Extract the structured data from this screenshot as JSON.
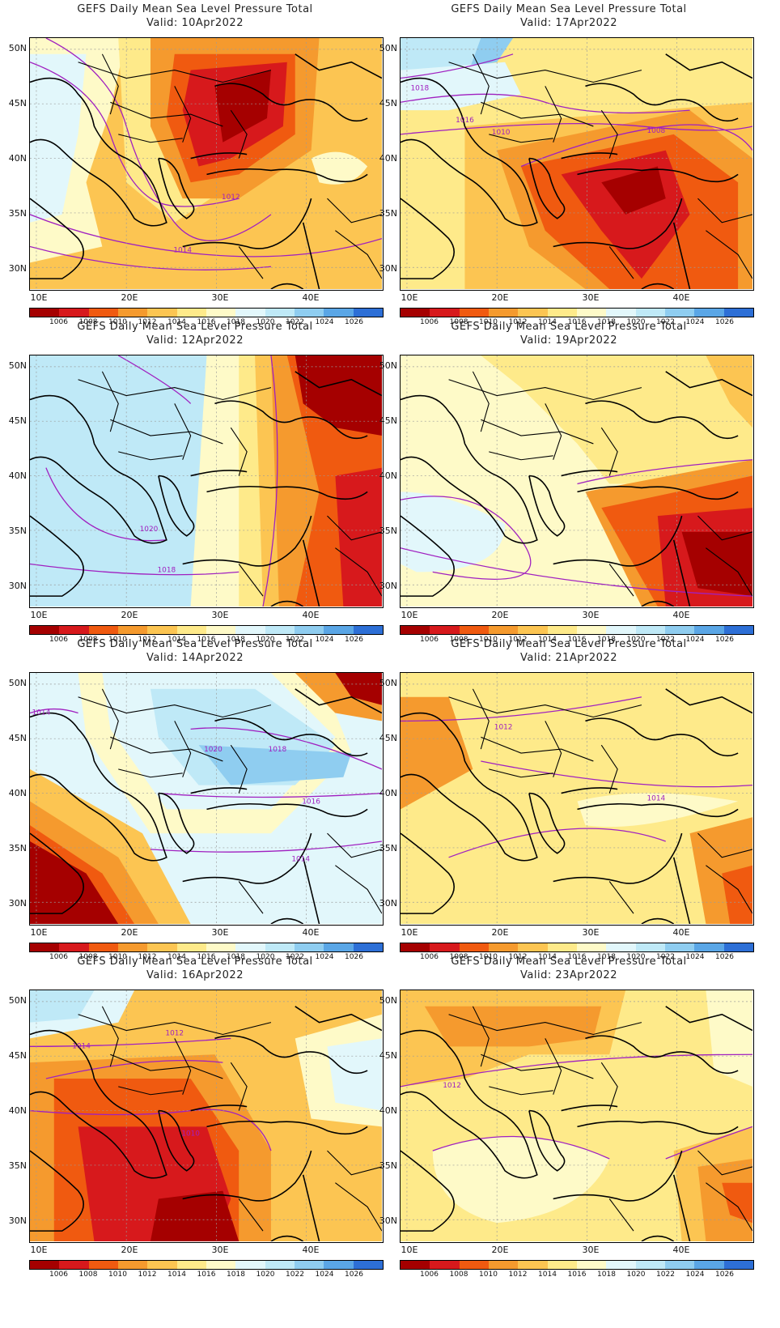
{
  "title": "GEFS Daily Mean Sea Level Pressure Total",
  "colorbar": {
    "labels": [
      "1006",
      "1008",
      "1010",
      "1012",
      "1014",
      "1016",
      "1018",
      "1020",
      "1022",
      "1024",
      "1026"
    ],
    "colors": [
      "#a50000",
      "#d7191c",
      "#f05a10",
      "#f59a2e",
      "#fcc552",
      "#feea8a",
      "#fefac8",
      "#e2f7fb",
      "#bfe9f7",
      "#8fcdf0",
      "#5aa6e6",
      "#2d6fd6"
    ]
  },
  "axes": {
    "lat_labels": [
      "50N",
      "45N",
      "40N",
      "35N",
      "30N"
    ],
    "lon_labels": [
      "10E",
      "20E",
      "30E",
      "40E"
    ]
  },
  "panels": [
    {
      "valid": "Valid: 10Apr2022",
      "contour_labels": [
        "1012",
        "1014"
      ],
      "background": "#fcc552"
    },
    {
      "valid": "Valid: 17Apr2022",
      "contour_labels": [
        "1018",
        "1016",
        "1010",
        "1008"
      ],
      "background": "#feea8a"
    },
    {
      "valid": "Valid: 12Apr2022",
      "contour_labels": [
        "1020",
        "1018"
      ],
      "background": "#bfe9f7"
    },
    {
      "valid": "Valid: 19Apr2022",
      "contour_labels": [],
      "background": "#fefac8"
    },
    {
      "valid": "Valid: 14Apr2022",
      "contour_labels": [
        "1014",
        "1020",
        "1018",
        "1016",
        "1014"
      ],
      "background": "#e2f7fb"
    },
    {
      "valid": "Valid: 21Apr2022",
      "contour_labels": [
        "1012",
        "1014"
      ],
      "background": "#feea8a"
    },
    {
      "valid": "Valid: 16Apr2022",
      "contour_labels": [
        "1014",
        "1012",
        "1010"
      ],
      "background": "#fcc552"
    },
    {
      "valid": "Valid: 23Apr2022",
      "contour_labels": [
        "1012"
      ],
      "background": "#feea8a"
    }
  ]
}
